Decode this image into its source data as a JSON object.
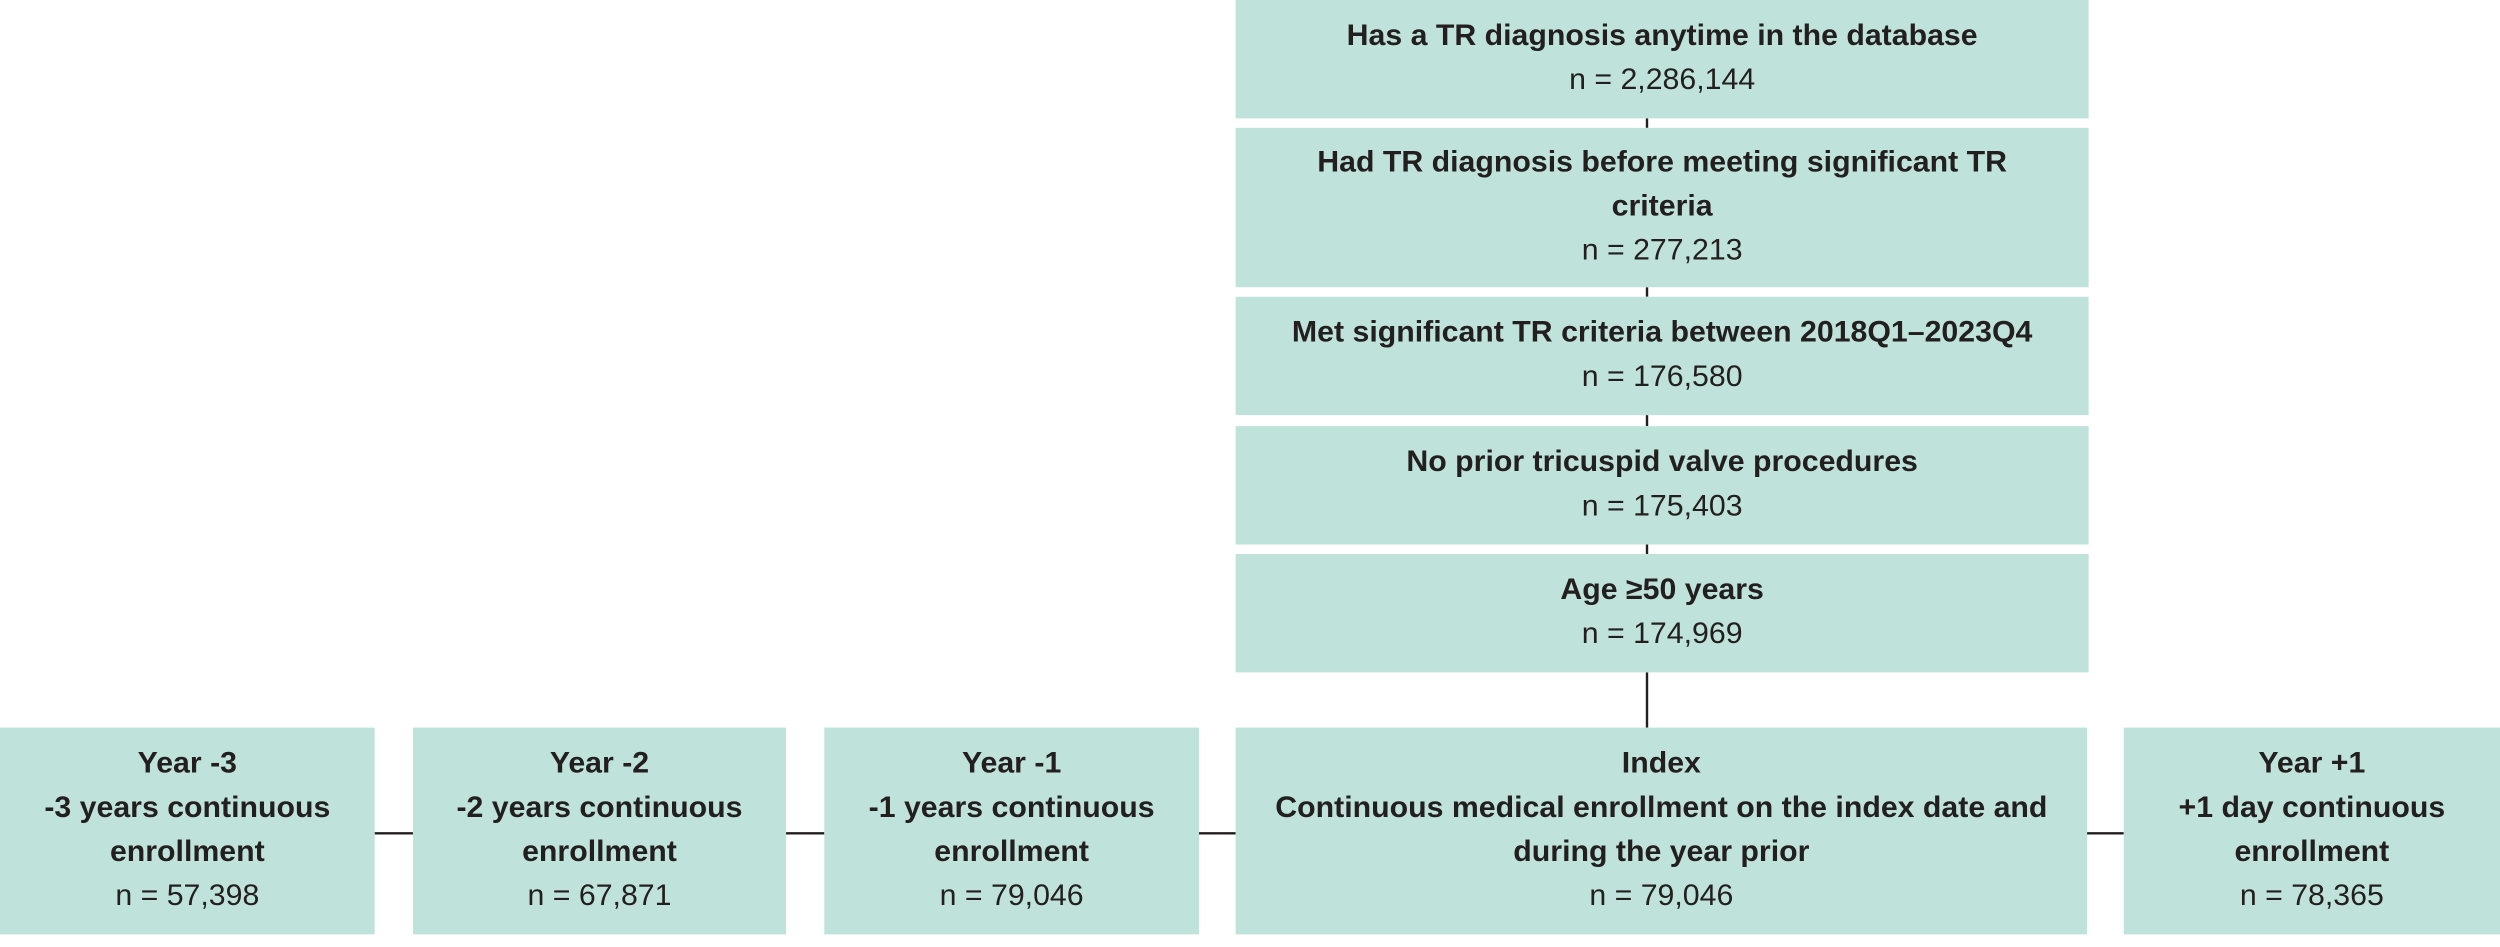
{
  "flow": [
    {
      "lines": [
        "Has a TR diagnosis anytime in the database"
      ],
      "n": "n = 2,286,144"
    },
    {
      "lines": [
        "Had TR diagnosis before meeting significant TR",
        "criteria"
      ],
      "n": "n = 277,213"
    },
    {
      "lines": [
        "Met significant TR criteria between 2018Q1–2023Q4"
      ],
      "n": "n = 176,580"
    },
    {
      "lines": [
        "No prior tricuspid valve procedures"
      ],
      "n": "n = 175,403"
    },
    {
      "lines": [
        "Age ≥50 years"
      ],
      "n": "n = 174,969"
    }
  ],
  "timeline": [
    {
      "lines": [
        "Year -3",
        "-3 years continuous",
        "enrollment"
      ],
      "n": "n = 57,398"
    },
    {
      "lines": [
        "Year -2",
        "-2 years continuous",
        "enrollment"
      ],
      "n": "n = 67,871"
    },
    {
      "lines": [
        "Year -1",
        "-1 years continuous",
        "enrollment"
      ],
      "n": "n = 79,046"
    },
    {
      "lines": [
        "Index",
        "Continuous medical enrollment on the index date and",
        "during the year prior"
      ],
      "n": "n = 79,046"
    },
    {
      "lines": [
        "Year +1",
        "+1 day continuous",
        "enrollment"
      ],
      "n": "n = 78,365"
    }
  ]
}
